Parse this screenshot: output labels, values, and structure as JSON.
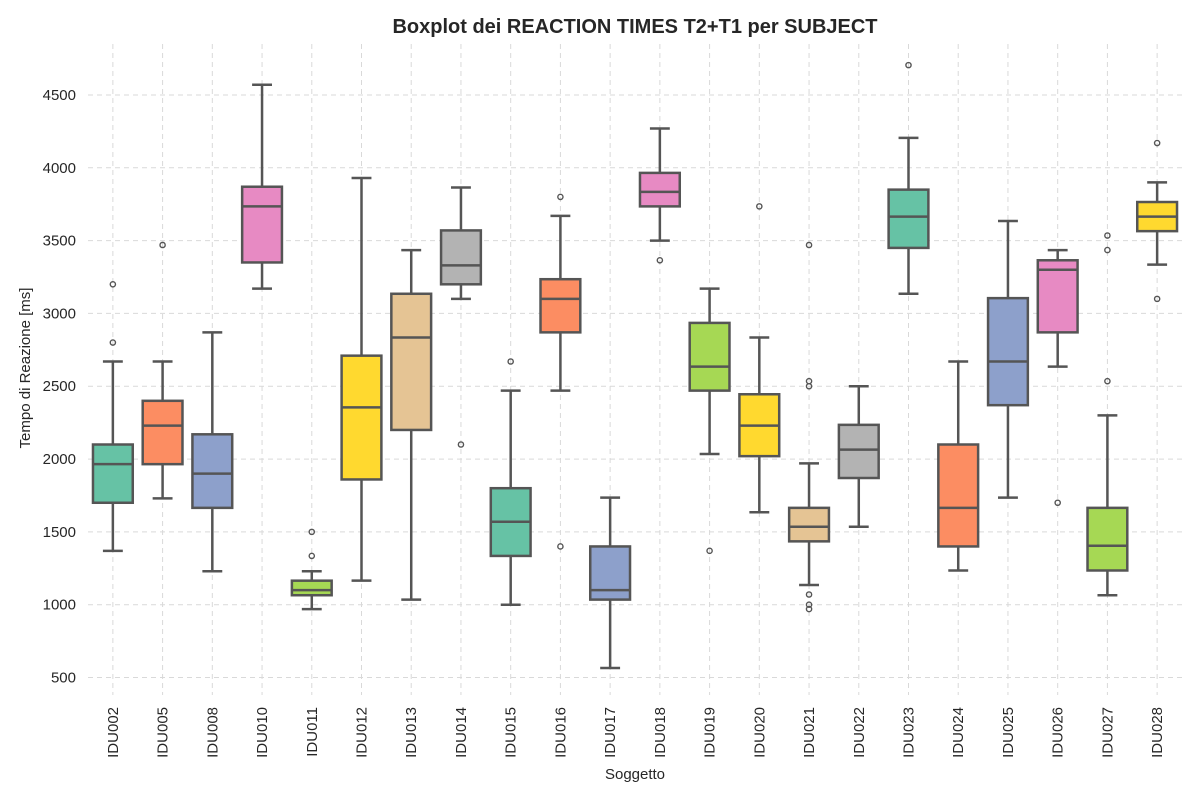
{
  "chart_data": {
    "type": "boxplot",
    "title": "Boxplot dei REACTION TIMES T2+T1 per SUBJECT",
    "xlabel": "Soggetto",
    "ylabel": "Tempo di Reazione [ms]",
    "ylim": [
      380,
      4850
    ],
    "yticks": [
      500,
      1000,
      1500,
      2000,
      2500,
      3000,
      3500,
      4000,
      4500
    ],
    "grid": true,
    "categories": [
      "IDU002",
      "IDU005",
      "IDU008",
      "IDU010",
      "IDU011",
      "IDU012",
      "IDU013",
      "IDU014",
      "IDU015",
      "IDU016",
      "IDU017",
      "IDU018",
      "IDU019",
      "IDU020",
      "IDU021",
      "IDU022",
      "IDU023",
      "IDU024",
      "IDU025",
      "IDU026",
      "IDU027",
      "IDU028"
    ],
    "boxes": [
      {
        "subject": "IDU002",
        "color": "#66c2a5",
        "whislo": 1370,
        "q1": 1700,
        "median": 1965,
        "q3": 2100,
        "whishi": 2670,
        "fliers": [
          2800,
          3200
        ]
      },
      {
        "subject": "IDU005",
        "color": "#fc8d62",
        "whislo": 1730,
        "q1": 1965,
        "median": 2230,
        "q3": 2400,
        "whishi": 2670,
        "fliers": [
          3470
        ]
      },
      {
        "subject": "IDU008",
        "color": "#8da0cb",
        "whislo": 1230,
        "q1": 1665,
        "median": 1900,
        "q3": 2170,
        "whishi": 2870,
        "fliers": []
      },
      {
        "subject": "IDU010",
        "color": "#e78ac3",
        "whislo": 3170,
        "q1": 3350,
        "median": 3735,
        "q3": 3870,
        "whishi": 4570,
        "fliers": []
      },
      {
        "subject": "IDU011",
        "color": "#a6d854",
        "whislo": 970,
        "q1": 1065,
        "median": 1100,
        "q3": 1165,
        "whishi": 1230,
        "fliers": [
          1335,
          1500
        ]
      },
      {
        "subject": "IDU012",
        "color": "#ffd92f",
        "whislo": 1165,
        "q1": 1860,
        "median": 2355,
        "q3": 2710,
        "whishi": 3930,
        "fliers": []
      },
      {
        "subject": "IDU013",
        "color": "#e5c494",
        "whislo": 1035,
        "q1": 2200,
        "median": 2835,
        "q3": 3135,
        "whishi": 3435,
        "fliers": []
      },
      {
        "subject": "IDU014",
        "color": "#b3b3b3",
        "whislo": 3100,
        "q1": 3200,
        "median": 3330,
        "q3": 3570,
        "whishi": 3865,
        "fliers": [
          2100
        ]
      },
      {
        "subject": "IDU015",
        "color": "#66c2a5",
        "whislo": 1000,
        "q1": 1335,
        "median": 1570,
        "q3": 1800,
        "whishi": 2470,
        "fliers": [
          2670
        ]
      },
      {
        "subject": "IDU016",
        "color": "#fc8d62",
        "whislo": 2470,
        "q1": 2870,
        "median": 3100,
        "q3": 3235,
        "whishi": 3670,
        "fliers": [
          1400,
          3800
        ]
      },
      {
        "subject": "IDU017",
        "color": "#8da0cb",
        "whislo": 565,
        "q1": 1035,
        "median": 1100,
        "q3": 1400,
        "whishi": 1735,
        "fliers": []
      },
      {
        "subject": "IDU018",
        "color": "#e78ac3",
        "whislo": 3500,
        "q1": 3735,
        "median": 3835,
        "q3": 3965,
        "whishi": 4270,
        "fliers": [
          3365
        ]
      },
      {
        "subject": "IDU019",
        "color": "#a6d854",
        "whislo": 2035,
        "q1": 2470,
        "median": 2635,
        "q3": 2935,
        "whishi": 3170,
        "fliers": [
          1370
        ]
      },
      {
        "subject": "IDU020",
        "color": "#ffd92f",
        "whislo": 1635,
        "q1": 2020,
        "median": 2230,
        "q3": 2445,
        "whishi": 2835,
        "fliers": [
          3735
        ]
      },
      {
        "subject": "IDU021",
        "color": "#e5c494",
        "whislo": 1135,
        "q1": 1435,
        "median": 1535,
        "q3": 1665,
        "whishi": 1970,
        "fliers": [
          970,
          1000,
          1070,
          2500,
          2535,
          3470
        ]
      },
      {
        "subject": "IDU022",
        "color": "#b3b3b3",
        "whislo": 1535,
        "q1": 1870,
        "median": 2065,
        "q3": 2235,
        "whishi": 2500,
        "fliers": []
      },
      {
        "subject": "IDU023",
        "color": "#66c2a5",
        "whislo": 3135,
        "q1": 3450,
        "median": 3665,
        "q3": 3850,
        "whishi": 4205,
        "fliers": [
          4705
        ]
      },
      {
        "subject": "IDU024",
        "color": "#fc8d62",
        "whislo": 1235,
        "q1": 1400,
        "median": 1665,
        "q3": 2100,
        "whishi": 2670,
        "fliers": []
      },
      {
        "subject": "IDU025",
        "color": "#8da0cb",
        "whislo": 1735,
        "q1": 2370,
        "median": 2670,
        "q3": 3105,
        "whishi": 3635,
        "fliers": []
      },
      {
        "subject": "IDU026",
        "color": "#e78ac3",
        "whislo": 2635,
        "q1": 2870,
        "median": 3300,
        "q3": 3365,
        "whishi": 3435,
        "fliers": [
          1700
        ]
      },
      {
        "subject": "IDU027",
        "color": "#a6d854",
        "whislo": 1065,
        "q1": 1235,
        "median": 1405,
        "q3": 1665,
        "whishi": 2300,
        "fliers": [
          2535,
          3435,
          3535
        ]
      },
      {
        "subject": "IDU028",
        "color": "#ffd92f",
        "whislo": 3335,
        "q1": 3565,
        "median": 3665,
        "q3": 3765,
        "whishi": 3900,
        "fliers": [
          3100,
          4170
        ]
      }
    ]
  }
}
